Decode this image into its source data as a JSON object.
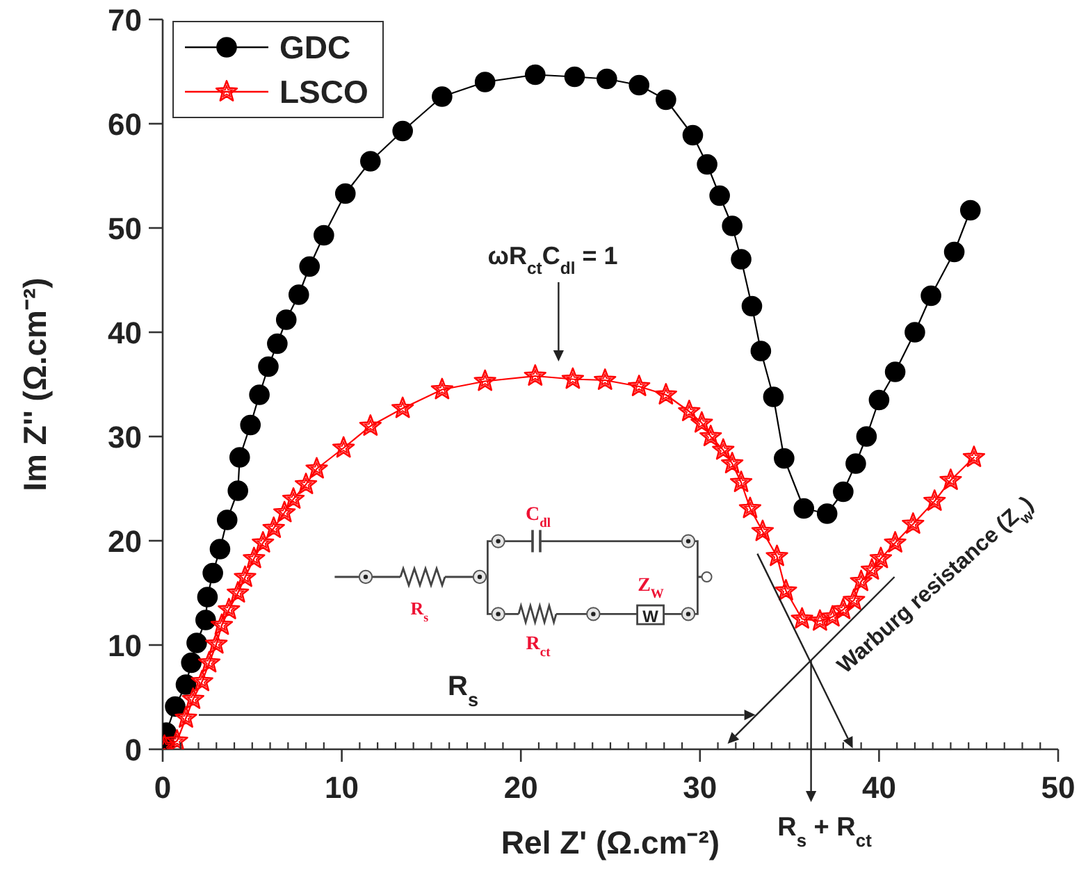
{
  "chart_data": {
    "type": "line",
    "xlabel": "Rel Z' (Ω.cm⁻²)",
    "ylabel": "Im Z'' (Ω.cm⁻²)",
    "xlim": [
      0,
      50
    ],
    "ylim": [
      0,
      70
    ],
    "xticks": [
      0,
      {
        "value": 1,
        "label": null
      },
      {
        "value": 2,
        "label": null
      },
      {
        "value": 3,
        "label": null
      },
      {
        "value": 4,
        "label": null
      },
      {
        "value": 5,
        "label": null
      },
      {
        "value": 6,
        "label": null
      },
      {
        "value": 7,
        "label": null
      },
      {
        "value": 8,
        "label": null
      },
      {
        "value": 9,
        "label": null
      },
      10,
      {
        "value": 11,
        "label": null
      },
      {
        "value": 12,
        "label": null
      },
      {
        "value": 13,
        "label": null
      },
      {
        "value": 14,
        "label": null
      },
      {
        "value": 15,
        "label": null
      },
      {
        "value": 16,
        "label": null
      },
      {
        "value": 17,
        "label": null
      },
      {
        "value": 18,
        "label": null
      },
      {
        "value": 19,
        "label": null
      },
      20,
      {
        "value": 21,
        "label": null
      },
      {
        "value": 22,
        "label": null
      },
      {
        "value": 23,
        "label": null
      },
      {
        "value": 24,
        "label": null
      },
      {
        "value": 25,
        "label": null
      },
      {
        "value": 26,
        "label": null
      },
      {
        "value": 27,
        "label": null
      },
      {
        "value": 28,
        "label": null
      },
      {
        "value": 29,
        "label": null
      },
      30,
      {
        "value": 31,
        "label": null
      },
      {
        "value": 32,
        "label": null
      },
      {
        "value": 33,
        "label": null
      },
      {
        "value": 34,
        "label": null
      },
      {
        "value": 35,
        "label": null
      },
      {
        "value": 36,
        "label": null
      },
      {
        "value": 37,
        "label": null
      },
      {
        "value": 38,
        "label": null
      },
      {
        "value": 39,
        "label": null
      },
      40,
      {
        "value": 41,
        "label": null
      },
      {
        "value": 42,
        "label": null
      },
      {
        "value": 43,
        "label": null
      },
      {
        "value": 44,
        "label": null
      },
      {
        "value": 45,
        "label": null
      },
      {
        "value": 46,
        "label": null
      },
      {
        "value": 47,
        "label": null
      },
      {
        "value": 48,
        "label": null
      },
      {
        "value": 49,
        "label": null
      },
      50
    ],
    "yticks": [
      0,
      10,
      20,
      30,
      40,
      50,
      60,
      70
    ],
    "grid": false,
    "legend": "top left",
    "line_style": "solid",
    "series": [
      {
        "name": "GDC",
        "color": "#000000",
        "marker": "circle",
        "x": [
          0.1,
          0.2,
          0.7,
          1.3,
          1.6,
          1.9,
          2.4,
          2.5,
          2.8,
          3.2,
          3.6,
          4.2,
          4.3,
          4.9,
          5.4,
          5.9,
          6.4,
          6.9,
          7.6,
          8.2,
          9.0,
          10.2,
          11.6,
          13.4,
          15.6,
          18.0,
          20.8,
          23.0,
          24.8,
          26.6,
          28.1,
          29.6,
          30.4,
          31.1,
          31.8,
          32.3,
          32.9,
          33.4,
          34.1,
          34.7,
          35.8,
          37.1,
          38.0,
          38.7,
          39.3,
          40.0,
          40.9,
          42.0,
          42.9,
          44.2,
          45.1
        ],
        "values": [
          0.5,
          1.6,
          4.1,
          6.2,
          8.3,
          10.2,
          12.4,
          14.6,
          16.9,
          19.2,
          22.0,
          24.8,
          28.0,
          31.1,
          34.0,
          36.7,
          38.9,
          41.2,
          43.6,
          46.3,
          49.3,
          53.3,
          56.4,
          59.3,
          62.6,
          64.0,
          64.7,
          64.5,
          64.3,
          63.7,
          62.3,
          58.9,
          56.1,
          53.1,
          50.2,
          47.0,
          42.5,
          38.2,
          33.8,
          27.9,
          23.1,
          22.6,
          24.7,
          27.4,
          30.0,
          33.5,
          36.2,
          40.0,
          43.5,
          47.7,
          51.7
        ]
      },
      {
        "name": "LSCO",
        "color": "#ff0000",
        "marker": "star",
        "x": [
          0.1,
          0.8,
          1.3,
          1.7,
          2.2,
          2.6,
          3.0,
          3.3,
          3.7,
          4.2,
          4.6,
          5.1,
          5.6,
          6.2,
          6.8,
          7.3,
          8.0,
          8.6,
          10.1,
          11.6,
          13.4,
          15.6,
          18.0,
          20.8,
          22.9,
          24.7,
          26.6,
          28.1,
          29.4,
          30.1,
          30.6,
          31.3,
          31.8,
          32.3,
          32.8,
          33.5,
          34.3,
          34.8,
          35.7,
          36.7,
          37.4,
          38.0,
          38.6,
          39.0,
          39.6,
          40.1,
          40.9,
          41.9,
          43.1,
          44.0,
          45.3
        ],
        "values": [
          0.3,
          0.8,
          3.0,
          4.8,
          6.5,
          8.3,
          10.1,
          11.9,
          13.4,
          15.0,
          16.5,
          18.3,
          19.8,
          21.2,
          22.7,
          24.0,
          25.4,
          26.9,
          28.9,
          31.0,
          32.7,
          34.5,
          35.3,
          35.8,
          35.5,
          35.4,
          34.8,
          34.0,
          32.4,
          31.3,
          30.0,
          28.7,
          27.4,
          25.6,
          23.1,
          20.9,
          18.5,
          15.2,
          12.5,
          12.3,
          12.7,
          13.4,
          14.3,
          16.1,
          17.2,
          18.3,
          19.8,
          21.6,
          23.8,
          25.8,
          28.0
        ]
      }
    ],
    "annotations": [
      "ωR$_{ct}$C$_{dl}$ = 1",
      "R$_{s}$",
      "R$_{s}$ + R$_{ct}$",
      "Warburg resistance (Z$_{w}$)",
      "R$_{s}$",
      "C$_{dl}$",
      "R$_{ct}$",
      "Z$_{W}$",
      "W"
    ]
  }
}
